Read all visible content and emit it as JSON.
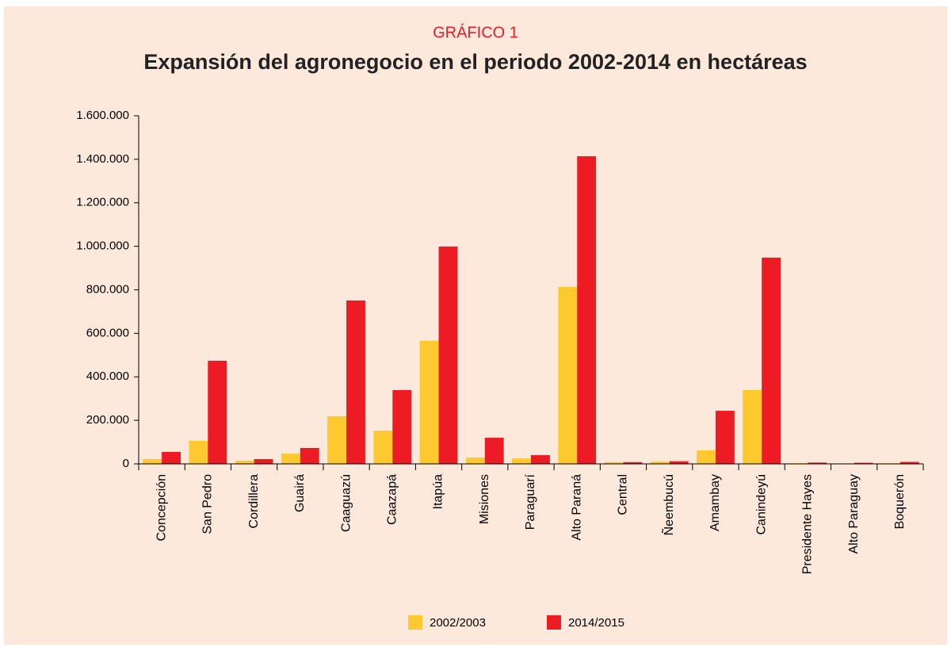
{
  "chart_data": {
    "type": "bar",
    "subtitle": "GRÁFICO 1",
    "title": "Expansión del agronegocio en el periodo 2002-2014 en hectáreas",
    "categories": [
      "Concepción",
      "San Pedro",
      "Cordillera",
      "Guairá",
      "Caaguazú",
      "Caazapá",
      "Itapúa",
      "Misiones",
      "Paraguarí",
      "Alto Paraná",
      "Central",
      "Ñeembucú",
      "Amambay",
      "Canindeyú",
      "Presidente Hayes",
      "Alto Paraguay",
      "Boquerón"
    ],
    "series": [
      {
        "name": "2002/2003",
        "color": "#fdc92f",
        "values": [
          22000,
          106000,
          15000,
          47000,
          219000,
          153000,
          565000,
          29000,
          25000,
          813000,
          8000,
          10000,
          62000,
          339000,
          3000,
          2000,
          3000
        ]
      },
      {
        "name": "2014/2015",
        "color": "#ed1c24",
        "values": [
          55000,
          474000,
          22000,
          73000,
          751000,
          339000,
          999000,
          120000,
          40000,
          1414000,
          8000,
          12000,
          244000,
          948000,
          6000,
          5000,
          9000
        ]
      }
    ],
    "ylim": [
      0,
      1600000
    ],
    "yticks": [
      0,
      {
        "value": 200000,
        "label": "200.000"
      },
      {
        "value": 400000,
        "label": "400.000"
      },
      {
        "value": 600000,
        "label": "600.000"
      },
      {
        "value": 800000,
        "label": "800.000"
      },
      {
        "value": 1000000,
        "label": "1.000.000"
      },
      {
        "value": 1200000,
        "label": "1.200.000"
      },
      {
        "value": 1400000,
        "label": "1.400.000"
      },
      {
        "value": 1600000,
        "label": "1.600.000"
      }
    ],
    "legend": "bottom"
  }
}
